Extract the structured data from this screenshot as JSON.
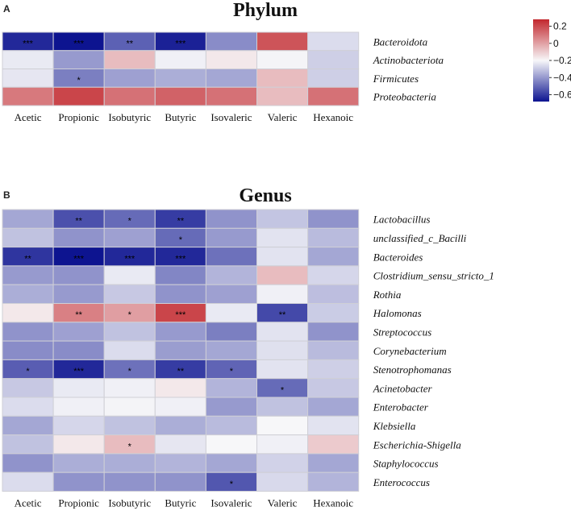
{
  "chart_data": [
    {
      "type": "heatmap",
      "panel_label": "A",
      "title": "Phylum",
      "columns": [
        "Acetic",
        "Propionic",
        "Isobutyric",
        "Butyric",
        "Isovaleric",
        "Valeric",
        "Hexanoic"
      ],
      "rows": [
        "Bacteroidota",
        "Actinobacteriota",
        "Firmicutes",
        "Proteobacteria"
      ],
      "values": [
        [
          -0.62,
          -0.68,
          -0.45,
          -0.64,
          -0.32,
          0.22,
          -0.08
        ],
        [
          -0.04,
          -0.28,
          0.08,
          -0.02,
          0.02,
          -0.01,
          -0.12
        ],
        [
          -0.05,
          -0.36,
          -0.26,
          -0.22,
          -0.24,
          0.08,
          -0.12
        ],
        [
          0.17,
          0.24,
          0.18,
          0.2,
          0.18,
          0.08,
          0.18
        ]
      ],
      "significance": [
        [
          "***",
          "***",
          "**",
          "***",
          "",
          "",
          ""
        ],
        [
          "",
          "",
          "",
          "",
          "",
          "",
          ""
        ],
        [
          "",
          "*",
          "",
          "",
          "",
          "",
          ""
        ],
        [
          "",
          "",
          "",
          "",
          "",
          "",
          ""
        ]
      ],
      "colorbar": {
        "min": -0.68,
        "max": 0.28,
        "ticks": [
          0.2,
          0,
          -0.2,
          -0.4,
          -0.6
        ],
        "tick_labels": [
          "0.2",
          "0",
          "−0.2",
          "−0.4",
          "−0.6"
        ]
      }
    },
    {
      "type": "heatmap",
      "panel_label": "B",
      "title": "Genus",
      "columns": [
        "Acetic",
        "Propionic",
        "Isobutyric",
        "Butyric",
        "Isovaleric",
        "Valeric",
        "Hexanoic"
      ],
      "rows": [
        "Lactobacillus",
        "unclassified_c_Bacilli",
        "Bacteroides",
        "Clostridium_sensu_stricto_1",
        "Rothia",
        "Halomonas",
        "Streptococcus",
        "Corynebacterium",
        "Stenotrophomanas",
        "Acinetobacter",
        "Enterobacter",
        "Klebsiella",
        "Escherichia-Shigella",
        "Staphylococcus",
        "Enterococcus"
      ],
      "values": [
        [
          -0.24,
          -0.5,
          -0.42,
          -0.56,
          -0.3,
          -0.15,
          -0.3
        ],
        [
          -0.16,
          -0.3,
          -0.26,
          -0.42,
          -0.28,
          -0.06,
          -0.18
        ],
        [
          -0.58,
          -0.68,
          -0.62,
          -0.62,
          -0.4,
          -0.06,
          -0.24
        ],
        [
          -0.28,
          -0.3,
          -0.04,
          -0.34,
          -0.2,
          0.08,
          -0.1
        ],
        [
          -0.22,
          -0.28,
          -0.14,
          -0.3,
          -0.26,
          -0.02,
          -0.17
        ],
        [
          0.02,
          0.16,
          0.12,
          0.24,
          -0.04,
          -0.52,
          -0.13
        ],
        [
          -0.3,
          -0.26,
          -0.16,
          -0.28,
          -0.36,
          -0.06,
          -0.3
        ],
        [
          -0.32,
          -0.32,
          -0.08,
          -0.27,
          -0.24,
          -0.07,
          -0.18
        ],
        [
          -0.46,
          -0.62,
          -0.4,
          -0.56,
          -0.44,
          -0.06,
          -0.12
        ],
        [
          -0.14,
          -0.04,
          -0.02,
          0.02,
          -0.2,
          -0.42,
          -0.14
        ],
        [
          -0.08,
          -0.02,
          -0.01,
          -0.02,
          -0.28,
          -0.16,
          -0.24
        ],
        [
          -0.24,
          -0.1,
          -0.16,
          -0.22,
          -0.18,
          0.0,
          -0.06
        ],
        [
          -0.16,
          0.02,
          0.08,
          -0.05,
          0.0,
          -0.02,
          0.06
        ],
        [
          -0.3,
          -0.22,
          -0.22,
          -0.2,
          -0.24,
          -0.11,
          -0.24
        ],
        [
          -0.08,
          -0.3,
          -0.3,
          -0.3,
          -0.48,
          -0.09,
          -0.2
        ]
      ],
      "significance": [
        [
          "",
          "**",
          "*",
          "**",
          "",
          "",
          ""
        ],
        [
          "",
          "",
          "",
          "*",
          "",
          "",
          ""
        ],
        [
          "**",
          "***",
          "***",
          "***",
          "",
          "",
          ""
        ],
        [
          "",
          "",
          "",
          "",
          "",
          "",
          ""
        ],
        [
          "",
          "",
          "",
          "",
          "",
          "",
          ""
        ],
        [
          "",
          "**",
          "*",
          "***",
          "",
          "**",
          ""
        ],
        [
          "",
          "",
          "",
          "",
          "",
          "",
          ""
        ],
        [
          "",
          "",
          "",
          "",
          "",
          "",
          ""
        ],
        [
          "*",
          "***",
          "*",
          "**",
          "*",
          "",
          ""
        ],
        [
          "",
          "",
          "",
          "",
          "",
          "*",
          ""
        ],
        [
          "",
          "",
          "",
          "",
          "",
          "",
          ""
        ],
        [
          "",
          "",
          "",
          "",
          "",
          "",
          ""
        ],
        [
          "",
          "",
          "*",
          "",
          "",
          "",
          ""
        ],
        [
          "",
          "",
          "",
          "",
          "",
          "",
          ""
        ],
        [
          "",
          "",
          "",
          "",
          "*",
          "",
          ""
        ]
      ]
    }
  ],
  "colors": {
    "neg": "#0d1490",
    "mid": "#f7f7f9",
    "pos": "#c2272d",
    "grid": "#cfcfd6"
  }
}
